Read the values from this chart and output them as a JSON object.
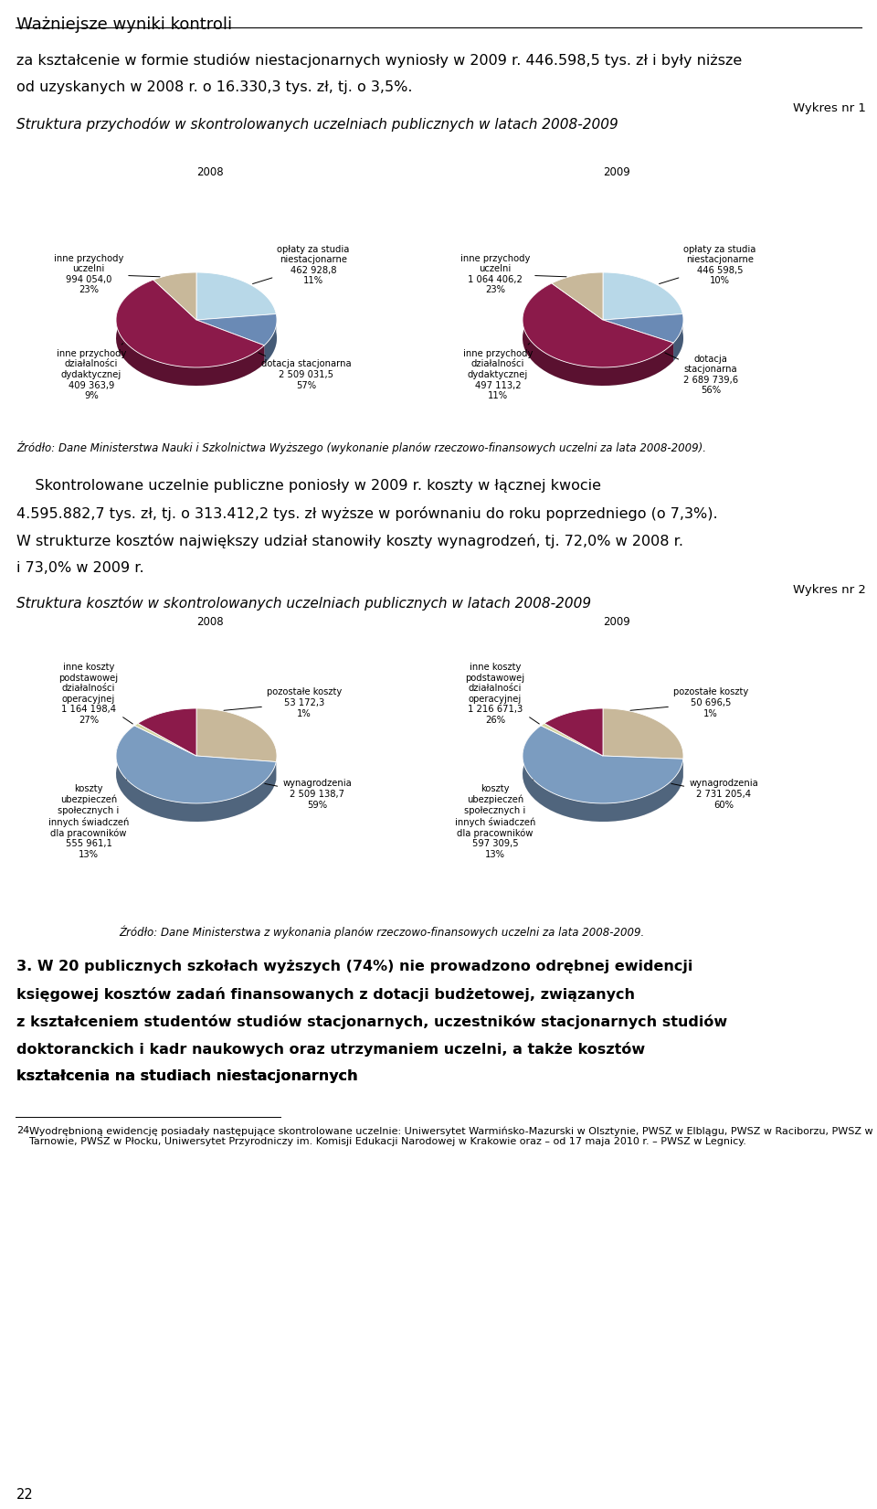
{
  "page_title": "Ważniejsze wyniki kontroli",
  "intro_text1": "za kształcenie w formie studiów niestacjonarnych wyniosły w 2009 r. 446.598,5 tys. zł i były niższe",
  "intro_text2": "od uzyskanych w 2008 r. o 16.330,3 tys. zł, tj. o 3,5%.",
  "wykres1_label": "Wykres nr 1",
  "wykres1_title": "Struktura przychodów w skontrolowanych uczelniach publicznych w latach 2008-2009",
  "pie1_2008_values": [
    23,
    11,
    57,
    9
  ],
  "pie1_2008_colors": [
    "#b8d8e8",
    "#6a8ab5",
    "#8b1a4a",
    "#c8b89a"
  ],
  "pie1_2009_values": [
    23,
    10,
    56,
    11
  ],
  "pie1_2009_colors": [
    "#b8d8e8",
    "#6a8ab5",
    "#8b1a4a",
    "#c8b89a"
  ],
  "pie2_2008_values": [
    27,
    59,
    1,
    13
  ],
  "pie2_2008_colors": [
    "#c8b89a",
    "#7b9cc0",
    "#d4d4a0",
    "#8b1a4a"
  ],
  "pie2_2009_values": [
    26,
    60,
    1,
    13
  ],
  "pie2_2009_colors": [
    "#c8b89a",
    "#7b9cc0",
    "#d4d4a0",
    "#8b1a4a"
  ],
  "source1": "Źródło: Dane Ministerstwa Nauki i Szkolnictwa Wyższego (wykonanie planów rzeczowo-finansowych uczelni za lata 2008-2009).",
  "source2": "Źródło: Dane Ministerstwa z wykonania planów rzeczowo-finansowych uczelni za lata 2008-2009.",
  "middle_text1": "    Skontrolowane uczelnie publiczne poniosły w 2009 r. koszty w łącznej kwocie",
  "middle_text2": "4.595.882,7 tys. zł, tj. o 313.412,2 tys. zł wyższe w porównaniu do roku poprzedniego (o 7,3%).",
  "middle_text3": "W strukturze kosztów największy udział stanowiły koszty wynagrodzeń, tj. 72,0% w 2008 r.",
  "middle_text4": "i 73,0% w 2009 r.",
  "wykres2_label": "Wykres nr 2",
  "wykres2_title": "Struktura kosztów w skontrolowanych uczelniach publicznych w latach 2008-2009",
  "bottom_bold": "3. W 20 publicznych szkołach wyższych (74%) nie prowadzono odrębnej ewidencji\nksięgowej kosztów zadań finansowanych z dotacji budżetowej, związanych\nz kształceniem studentów studiów stacjonarnych, uczestników stacjonarnych studiów\ndoktoranckich i kadr naukowych oraz utrzymaniem uczelni, a także kosztów\nkształcenia na studiach niestacjonarnych",
  "footnote_num": "24",
  "footnote_text": "Wyodrębnioną ewidencję posiadały następujące skontrolowane uczelnie: Uniwersytet Warmińsko-Mazurski w Olsztynie, PWSZ w Elblągu, PWSZ w Raciborzu, PWSZ w Tarnowie, PWSZ w Płocku, Uniwersytet Przyrodniczy im. Komisji Edukacji Narodowej w Krakowie oraz – od 17 maja 2010 r. – PWSZ w Legnicy.",
  "page_number": "22",
  "background_color": "#ffffff"
}
